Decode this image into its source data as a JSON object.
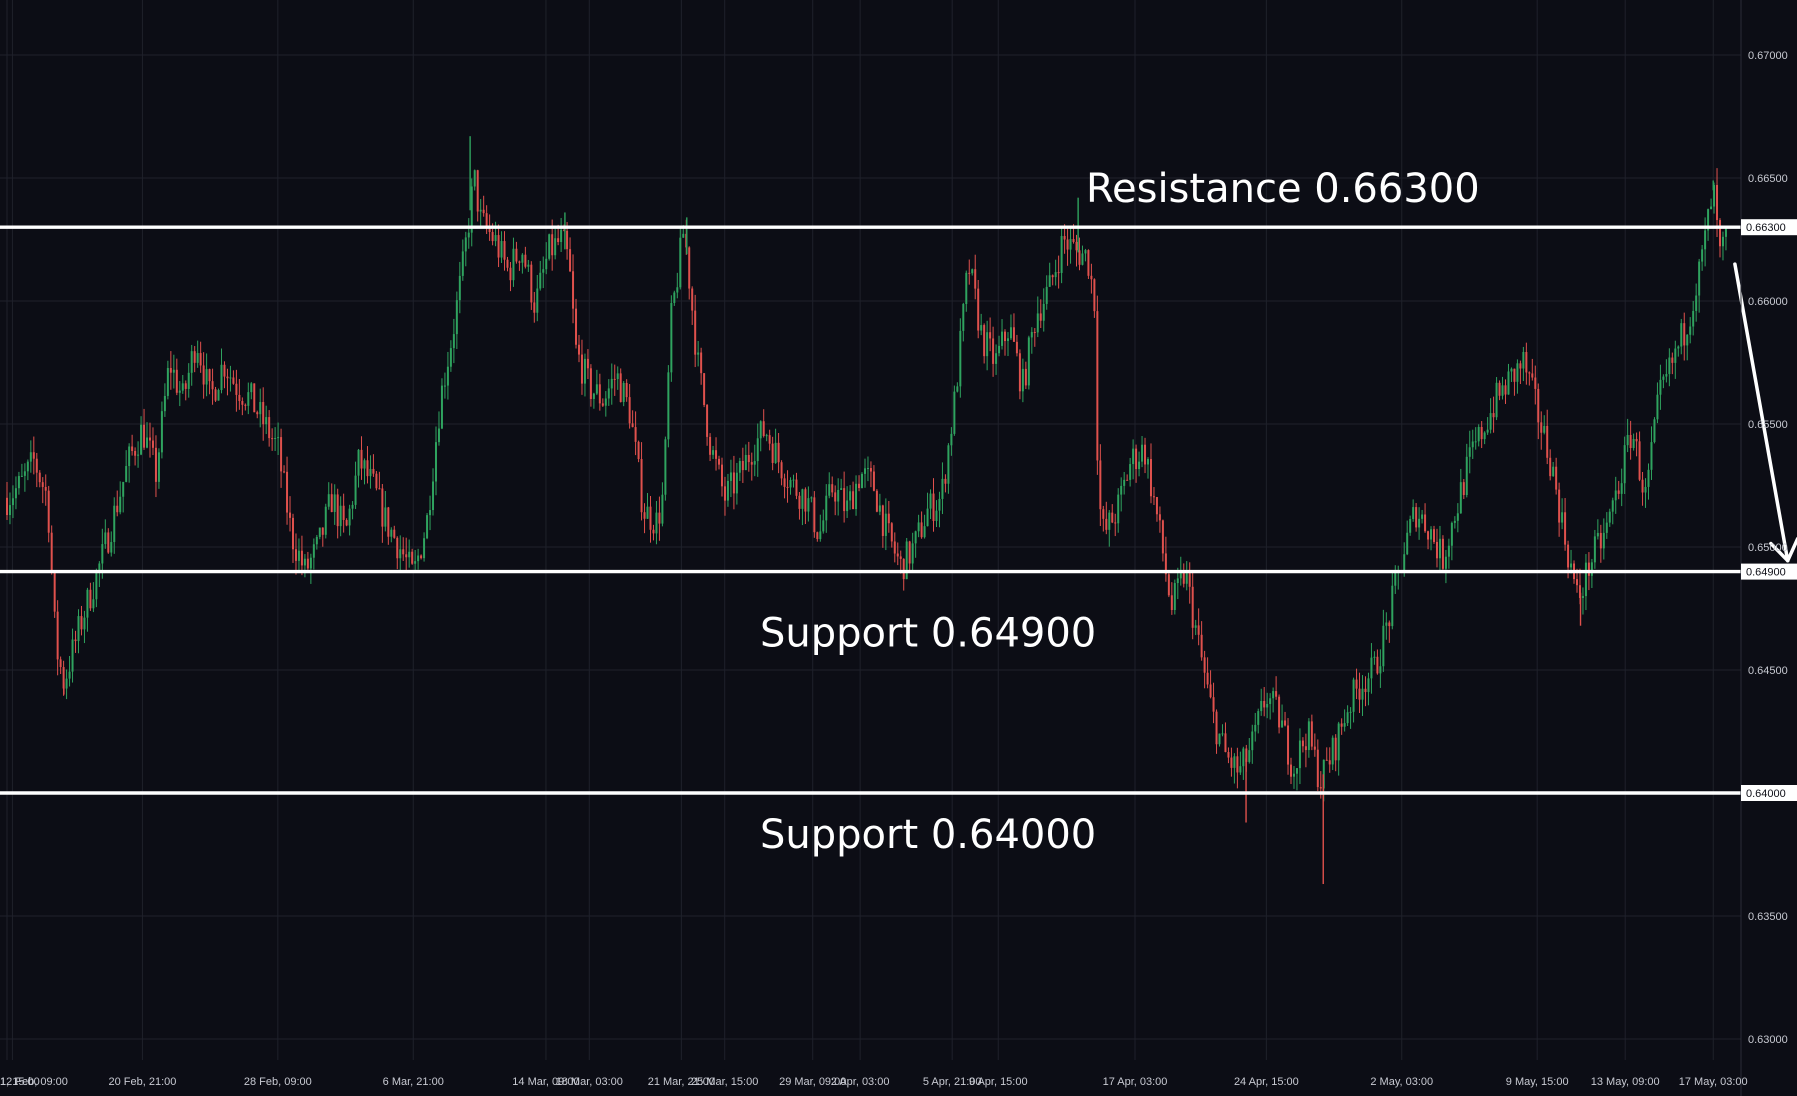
{
  "chart_data": {
    "type": "candlestick",
    "symbol": "",
    "colors": {
      "background": "#0c0d15",
      "grid": "#1f212b",
      "up": "#2fa35f",
      "down": "#e0514d",
      "levels": "#ffffff"
    },
    "ylim": [
      0.629,
      0.6715
    ],
    "y_ticks": [
      "0.63000",
      "0.63500",
      "0.64000",
      "0.64500",
      "0.65000",
      "0.65500",
      "0.66000",
      "0.66500",
      "0.67000"
    ],
    "x_ticks": [
      {
        "label": "1, 15:00",
        "t": 0.0
      },
      {
        "label": "12 Feb, 09:00",
        "t": 0.4
      },
      {
        "label": "20 Feb, 21:00",
        "t": 10
      },
      {
        "label": "28 Feb, 09:00",
        "t": 20
      },
      {
        "label": "6 Mar, 21:00",
        "t": 30
      },
      {
        "label": "14 Mar, 09:00",
        "t": 39.8
      },
      {
        "label": "18 Mar, 03:00",
        "t": 43
      },
      {
        "label": "21 Mar, 21:00",
        "t": 49.8
      },
      {
        "label": "25 Mar, 15:00",
        "t": 53
      },
      {
        "label": "29 Mar, 09:00",
        "t": 59.5
      },
      {
        "label": "2 Apr, 03:00",
        "t": 63
      },
      {
        "label": "5 Apr, 21:00",
        "t": 69.8
      },
      {
        "label": "9 Apr, 15:00",
        "t": 73.2
      },
      {
        "label": "17 Apr, 03:00",
        "t": 83.3
      },
      {
        "label": "24 Apr, 15:00",
        "t": 93
      },
      {
        "label": "2 May, 03:00",
        "t": 103
      },
      {
        "label": "9 May, 15:00",
        "t": 113
      },
      {
        "label": "13 May, 09:00",
        "t": 119.5
      },
      {
        "label": "17 May, 03:00",
        "t": 126
      }
    ],
    "x_range": [
      0,
      126.5
    ],
    "price_path": [
      [
        0,
        0.652
      ],
      [
        1,
        0.6525
      ],
      [
        2,
        0.6535
      ],
      [
        3,
        0.652
      ],
      [
        3.6,
        0.646
      ],
      [
        4.2,
        0.6445
      ],
      [
        5.5,
        0.647
      ],
      [
        7,
        0.6495
      ],
      [
        8,
        0.6515
      ],
      [
        9,
        0.6535
      ],
      [
        10,
        0.6548
      ],
      [
        11,
        0.653
      ],
      [
        12,
        0.6575
      ],
      [
        13,
        0.656
      ],
      [
        14,
        0.6585
      ],
      [
        15,
        0.656
      ],
      [
        16,
        0.6575
      ],
      [
        17,
        0.6565
      ],
      [
        18,
        0.656
      ],
      [
        19,
        0.655
      ],
      [
        20,
        0.654
      ],
      [
        21,
        0.6505
      ],
      [
        22,
        0.649
      ],
      [
        23,
        0.65
      ],
      [
        24,
        0.652
      ],
      [
        25,
        0.6505
      ],
      [
        26,
        0.6535
      ],
      [
        27,
        0.6525
      ],
      [
        28,
        0.651
      ],
      [
        29,
        0.65
      ],
      [
        30,
        0.6488
      ],
      [
        31,
        0.651
      ],
      [
        32,
        0.656
      ],
      [
        33,
        0.659
      ],
      [
        33.7,
        0.6615
      ],
      [
        34.5,
        0.665
      ],
      [
        35,
        0.6632
      ],
      [
        36,
        0.6625
      ],
      [
        37,
        0.6612
      ],
      [
        38,
        0.6622
      ],
      [
        39,
        0.6598
      ],
      [
        40,
        0.662
      ],
      [
        41,
        0.6625
      ],
      [
        41.5,
        0.6615
      ],
      [
        42,
        0.658
      ],
      [
        43,
        0.6565
      ],
      [
        44,
        0.656
      ],
      [
        45,
        0.657
      ],
      [
        46,
        0.6555
      ],
      [
        47,
        0.6515
      ],
      [
        48,
        0.651
      ],
      [
        48.5,
        0.6522
      ],
      [
        49,
        0.659
      ],
      [
        50,
        0.663
      ],
      [
        51,
        0.6575
      ],
      [
        52,
        0.654
      ],
      [
        53,
        0.652
      ],
      [
        54,
        0.6528
      ],
      [
        55,
        0.654
      ],
      [
        56,
        0.6548
      ],
      [
        57,
        0.6535
      ],
      [
        58,
        0.6525
      ],
      [
        59,
        0.652
      ],
      [
        60,
        0.6505
      ],
      [
        61,
        0.6525
      ],
      [
        62,
        0.6515
      ],
      [
        63,
        0.653
      ],
      [
        64,
        0.6525
      ],
      [
        65,
        0.6505
      ],
      [
        66,
        0.6492
      ],
      [
        67,
        0.65
      ],
      [
        68,
        0.6515
      ],
      [
        69,
        0.652
      ],
      [
        70,
        0.656
      ],
      [
        71,
        0.6615
      ],
      [
        72,
        0.6585
      ],
      [
        73,
        0.6575
      ],
      [
        74,
        0.659
      ],
      [
        75,
        0.6565
      ],
      [
        76,
        0.6595
      ],
      [
        77,
        0.6605
      ],
      [
        78,
        0.6625
      ],
      [
        79,
        0.662
      ],
      [
        79.8,
        0.6618
      ],
      [
        80.3,
        0.66
      ],
      [
        80.6,
        0.652
      ],
      [
        81,
        0.6505
      ],
      [
        82,
        0.6515
      ],
      [
        83,
        0.6535
      ],
      [
        84,
        0.654
      ],
      [
        85,
        0.651
      ],
      [
        86,
        0.6475
      ],
      [
        87,
        0.649
      ],
      [
        88,
        0.646
      ],
      [
        89,
        0.6432
      ],
      [
        90,
        0.6415
      ],
      [
        91,
        0.6408
      ],
      [
        92,
        0.642
      ],
      [
        93,
        0.644
      ],
      [
        94,
        0.643
      ],
      [
        95,
        0.641
      ],
      [
        96,
        0.6425
      ],
      [
        97,
        0.6405
      ],
      [
        98,
        0.6418
      ],
      [
        99,
        0.6435
      ],
      [
        100,
        0.6445
      ],
      [
        101,
        0.645
      ],
      [
        102,
        0.647
      ],
      [
        103,
        0.6495
      ],
      [
        104,
        0.6515
      ],
      [
        105,
        0.6508
      ],
      [
        106,
        0.6495
      ],
      [
        107,
        0.6515
      ],
      [
        108,
        0.6535
      ],
      [
        109,
        0.6548
      ],
      [
        110,
        0.656
      ],
      [
        111,
        0.6568
      ],
      [
        112,
        0.6575
      ],
      [
        113,
        0.6555
      ],
      [
        114,
        0.6535
      ],
      [
        115,
        0.6505
      ],
      [
        116,
        0.6478
      ],
      [
        117,
        0.6495
      ],
      [
        118,
        0.6505
      ],
      [
        119,
        0.6525
      ],
      [
        120,
        0.6548
      ],
      [
        121,
        0.652
      ],
      [
        122,
        0.656
      ],
      [
        123,
        0.6575
      ],
      [
        124,
        0.659
      ],
      [
        125,
        0.6612
      ],
      [
        126,
        0.6645
      ],
      [
        126.5,
        0.6618
      ],
      [
        127,
        0.6625
      ]
    ],
    "spikes": [
      {
        "t": 34.2,
        "high": 0.6667
      },
      {
        "t": 41.2,
        "high": 0.6636
      },
      {
        "t": 50.2,
        "high": 0.6634
      },
      {
        "t": 79.1,
        "high": 0.6642
      },
      {
        "t": 91.5,
        "low": 0.6388
      },
      {
        "t": 97.2,
        "low": 0.6363
      },
      {
        "t": 4.2,
        "low": 0.644
      },
      {
        "t": 126.0,
        "high": 0.6649
      },
      {
        "t": 116.2,
        "low": 0.6468
      }
    ]
  },
  "levels": [
    {
      "price": 0.663,
      "axis_label": "0.66300",
      "text": "Resistance 0.66300",
      "text_pos": "above"
    },
    {
      "price": 0.649,
      "axis_label": "0.64900",
      "text": "Support 0.64900",
      "text_pos": "below"
    },
    {
      "price": 0.64,
      "axis_label": "0.64000",
      "text": "Support 0.64000",
      "text_pos": "below"
    }
  ],
  "projection": {
    "from": {
      "t": 127.6,
      "price": 0.6615
    },
    "to": {
      "t": 131.5,
      "price": 0.6492
    }
  }
}
